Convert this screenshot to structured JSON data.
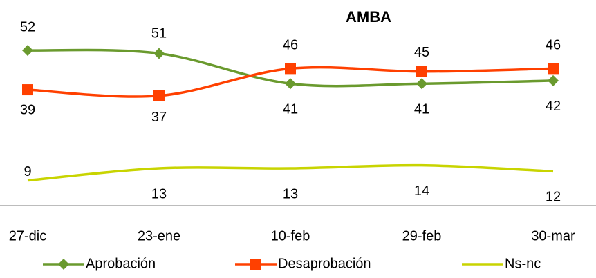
{
  "chart_data": {
    "type": "line",
    "title": "AMBA",
    "categories": [
      "27-dic",
      "23-ene",
      "10-feb",
      "29-feb",
      "30-mar"
    ],
    "series": [
      {
        "name": "Aprobación",
        "color": "#6a9a2e",
        "marker": "diamond",
        "values": [
          52,
          51,
          41,
          41,
          42
        ]
      },
      {
        "name": "Desaprobación",
        "color": "#ff4000",
        "marker": "square",
        "values": [
          39,
          37,
          46,
          45,
          46
        ]
      },
      {
        "name": "Ns-nc",
        "color": "#c8d400",
        "values": [
          9,
          13,
          13,
          14,
          12
        ]
      }
    ],
    "ylim": [
      0,
      60
    ],
    "smooth": true,
    "legend": "bottom"
  }
}
